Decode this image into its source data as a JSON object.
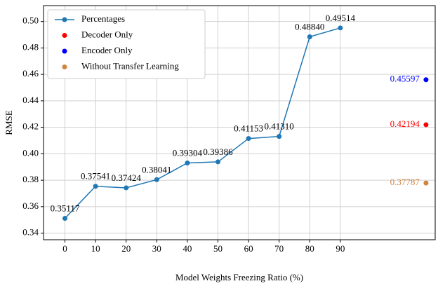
{
  "chart_data": {
    "type": "line",
    "xlabel": "Model Weights Freezing Ratio (%)",
    "ylabel": "RMSE",
    "xlim": [
      -7,
      121
    ],
    "ylim": [
      0.335,
      0.512
    ],
    "xticks": [
      0,
      10,
      20,
      30,
      40,
      50,
      60,
      70,
      80,
      90
    ],
    "yticks": [
      0.34,
      0.36,
      0.38,
      {
        "value": 0.4,
        "label": "0.40"
      },
      0.42,
      0.44,
      0.46,
      0.48,
      {
        "value": 0.5,
        "label": "0.50"
      }
    ],
    "grid": true,
    "legend": "upper left",
    "series": [
      {
        "name": "Percentages",
        "type": "line",
        "color": "#1f77b4",
        "x": [
          0,
          10,
          20,
          30,
          40,
          50,
          60,
          70,
          80,
          90
        ],
        "values": [
          0.35117,
          0.37541,
          0.37424,
          0.38041,
          0.39304,
          0.39386,
          0.41153,
          0.4131,
          0.4884,
          0.49514
        ],
        "value_labels": [
          "0.35117",
          "0.37541",
          "0.37424",
          "0.38041",
          "0.39304",
          "0.39386",
          "0.41153",
          "0.41310",
          "0.48840",
          "0.49514"
        ]
      },
      {
        "name": "Decoder Only",
        "type": "scatter",
        "color": "#ff0000",
        "x": [
          118
        ],
        "values": [
          0.42194
        ]
      },
      {
        "name": "Encoder Only",
        "type": "scatter",
        "color": "#0000ff",
        "x": [
          118
        ],
        "values": [
          0.45597
        ]
      },
      {
        "name": "Without Transfer Learning",
        "type": "scatter",
        "color": "#cd853f",
        "x": [
          118
        ],
        "values": [
          0.37787
        ]
      }
    ]
  }
}
